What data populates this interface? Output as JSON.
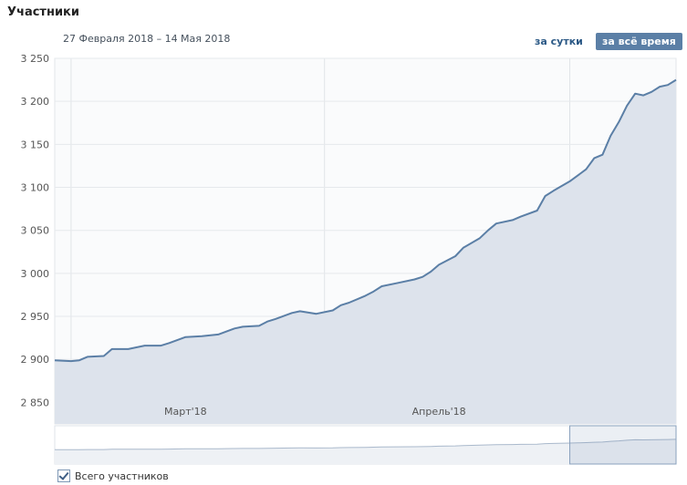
{
  "header": {
    "title": "Участники",
    "date_range": "27 Февраля 2018 – 14 Мая 2018",
    "btn_day": "за сутки",
    "btn_all": "за всё время"
  },
  "colors": {
    "line": "#5b7fa6",
    "area": "#dde3ec",
    "button_active": "#5b7fa6",
    "link": "#2a5885"
  },
  "legend": {
    "label": "Всего участников",
    "checked": true
  },
  "chart_data": {
    "type": "area",
    "title": "Участники",
    "x": [
      "2018-02-27",
      "2018-03-01",
      "2018-03-02",
      "2018-03-03",
      "2018-03-05",
      "2018-03-06",
      "2018-03-08",
      "2018-03-10",
      "2018-03-12",
      "2018-03-13",
      "2018-03-15",
      "2018-03-17",
      "2018-03-19",
      "2018-03-21",
      "2018-03-22",
      "2018-03-24",
      "2018-03-25",
      "2018-03-26",
      "2018-03-28",
      "2018-03-29",
      "2018-03-31",
      "2018-04-02",
      "2018-04-03",
      "2018-04-04",
      "2018-04-06",
      "2018-04-07",
      "2018-04-08",
      "2018-04-10",
      "2018-04-12",
      "2018-04-13",
      "2018-04-14",
      "2018-04-15",
      "2018-04-17",
      "2018-04-18",
      "2018-04-20",
      "2018-04-21",
      "2018-04-22",
      "2018-04-24",
      "2018-04-25",
      "2018-04-27",
      "2018-04-28",
      "2018-04-29",
      "2018-05-01",
      "2018-05-02",
      "2018-05-03",
      "2018-05-04",
      "2018-05-05",
      "2018-05-06",
      "2018-05-07",
      "2018-05-08",
      "2018-05-09",
      "2018-05-10",
      "2018-05-11",
      "2018-05-12",
      "2018-05-13",
      "2018-05-14"
    ],
    "series": [
      {
        "name": "Всего участников",
        "values": [
          2899,
          2898,
          2899,
          2903,
          2904,
          2912,
          2912,
          2916,
          2916,
          2919,
          2926,
          2927,
          2929,
          2936,
          2938,
          2939,
          2944,
          2947,
          2954,
          2956,
          2953,
          2957,
          2963,
          2966,
          2974,
          2979,
          2985,
          2989,
          2993,
          2996,
          3002,
          3010,
          3020,
          3030,
          3041,
          3050,
          3058,
          3062,
          3066,
          3073,
          3090,
          3096,
          3107,
          3114,
          3121,
          3134,
          3138,
          3160,
          3176,
          3195,
          3209,
          3207,
          3211,
          3217,
          3219,
          3225
        ]
      }
    ],
    "ylim": [
      2825,
      3250
    ],
    "yticks": [
      "3 250",
      "3 200",
      "3 150",
      "3 100",
      "3 050",
      "3 000",
      "2 950",
      "2 900",
      "2 850"
    ],
    "month_labels": [
      "Март'18",
      "Апрель'18"
    ],
    "grid": true
  }
}
